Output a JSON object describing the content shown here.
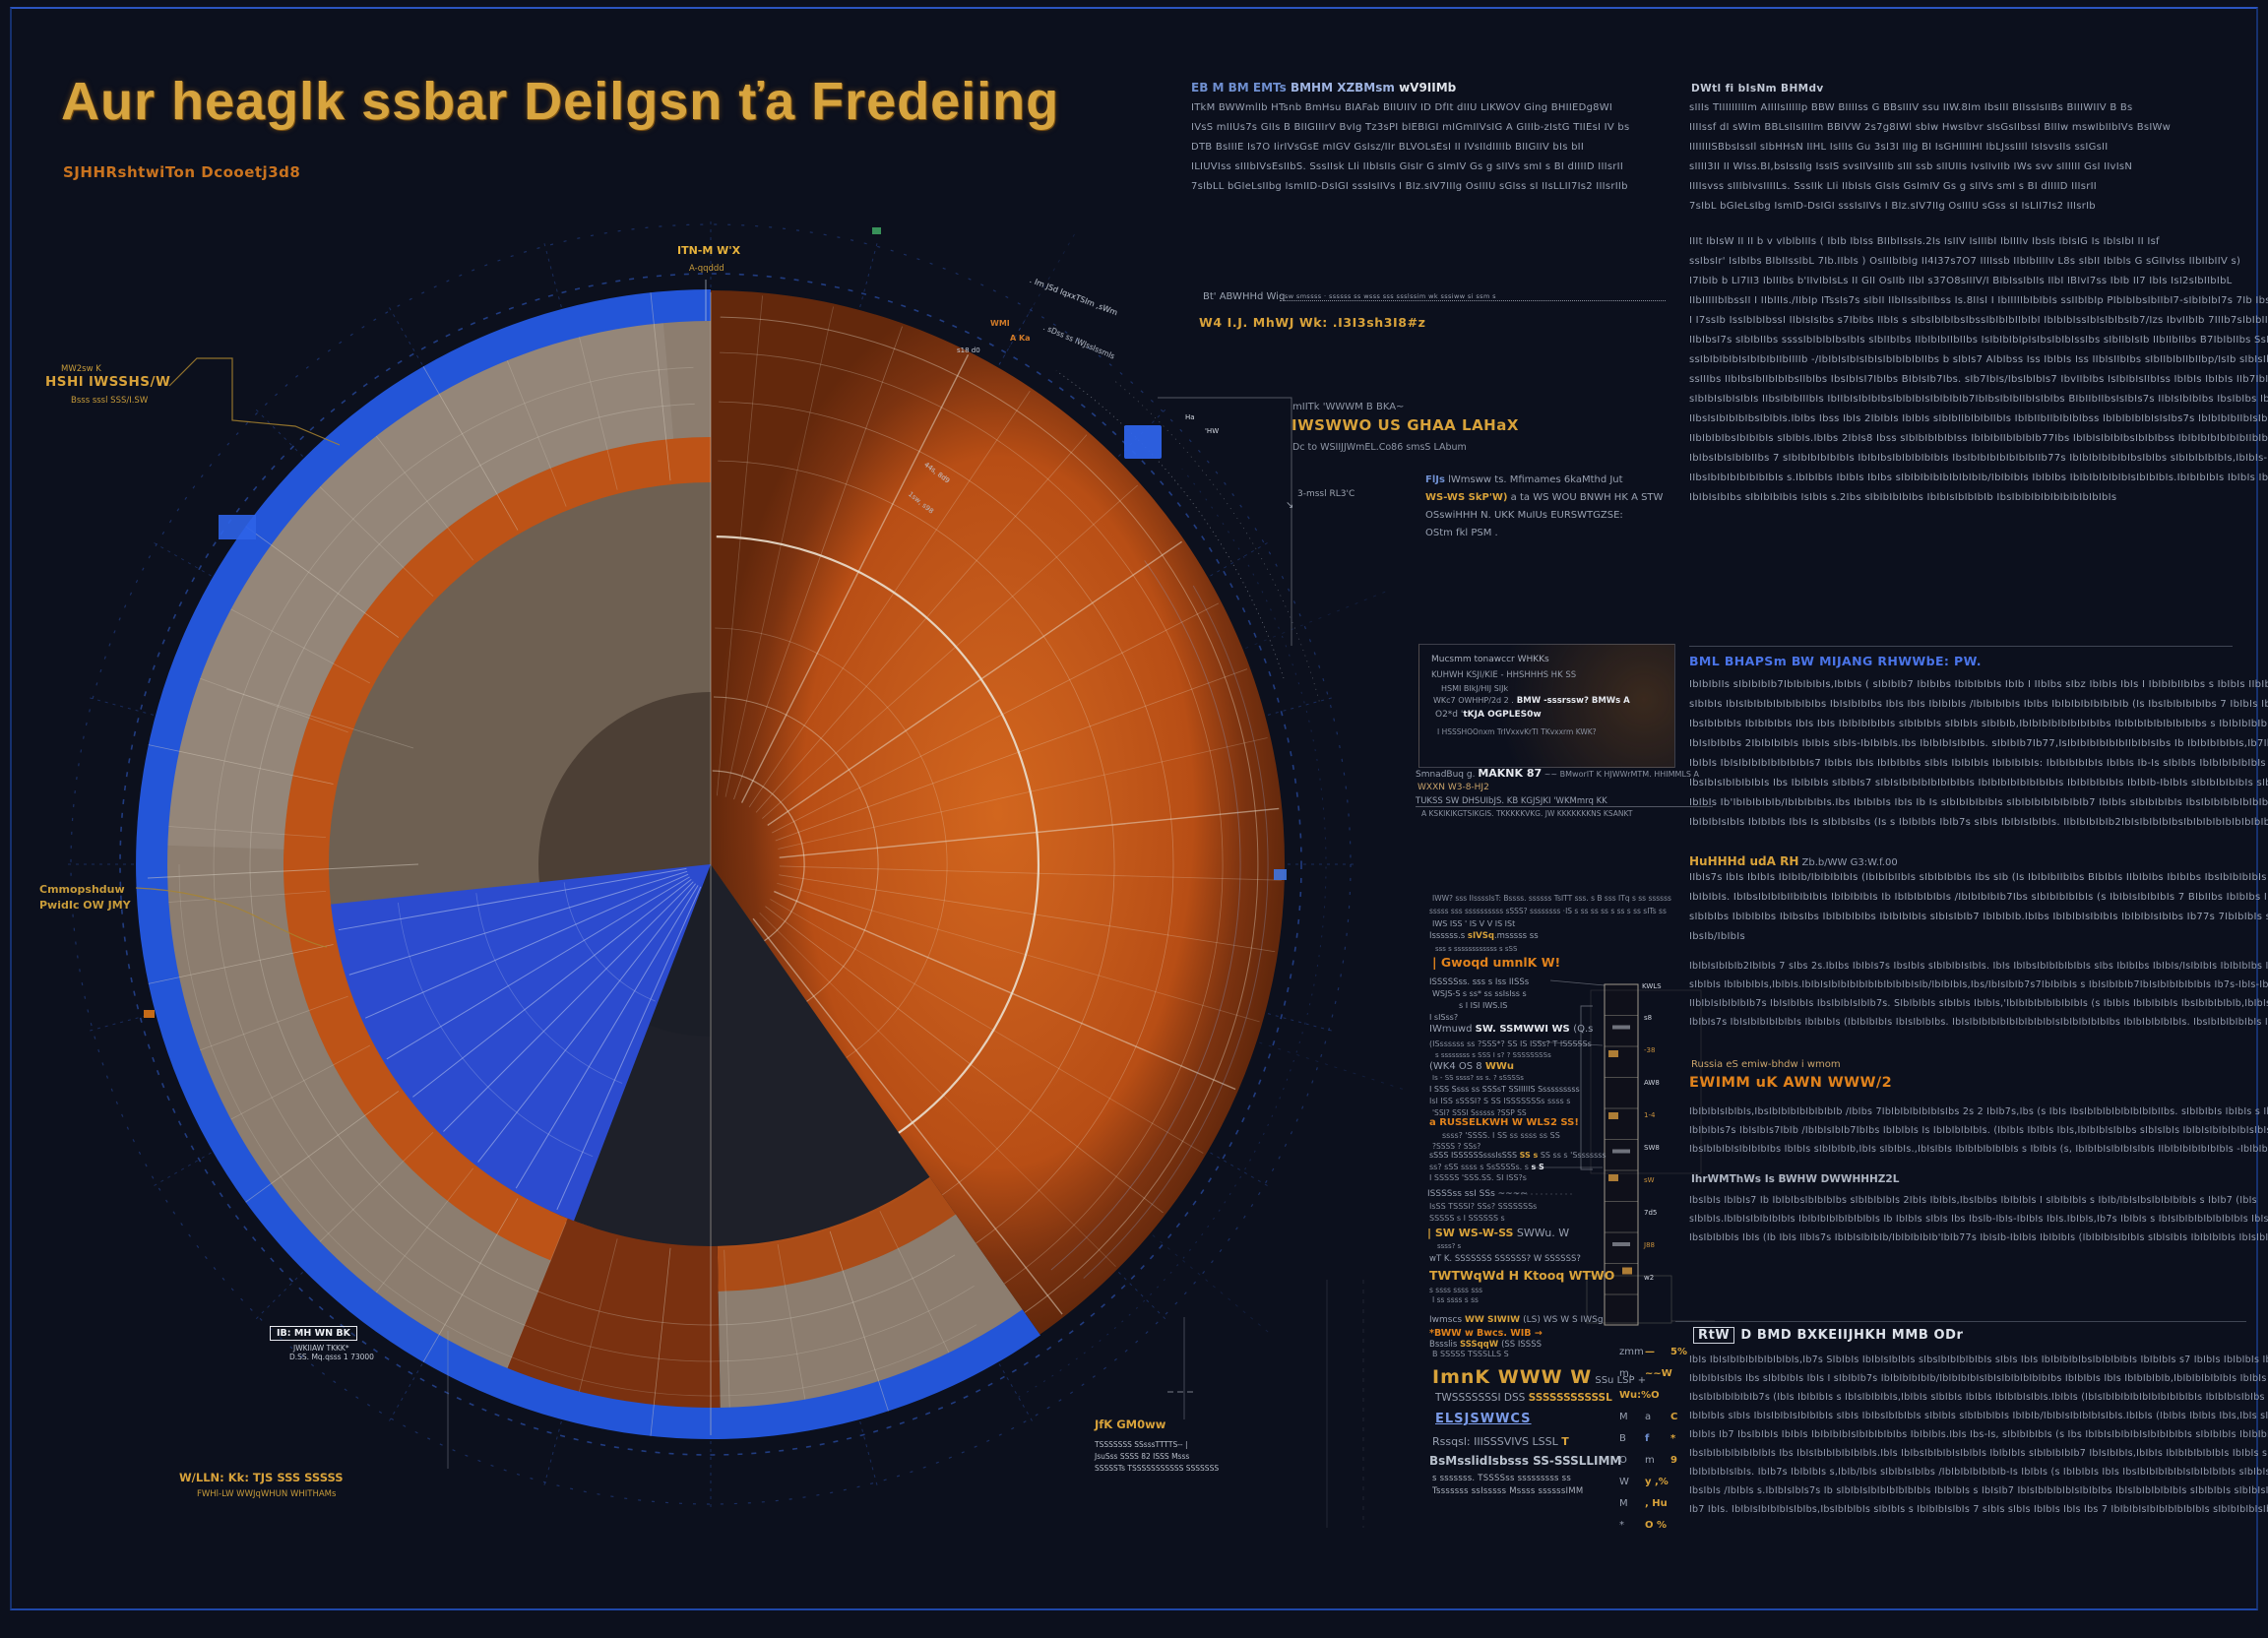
{
  "poster": {
    "title": "Aur heaglk ssbar Deilgsn ťa Fredeiing",
    "subtitle": "SJHHRshtwiTon Dcooetj3d8"
  },
  "colors": {
    "background": "#0c101d",
    "frame_blue": "#1c3c92",
    "gold": "#d8a23a",
    "orange_accent": "#e0821c",
    "accent_blue": "#4a74e8",
    "body_grey": "#97a0b1",
    "orange_bright": "#d2661e",
    "orange_mid": "#b84e15",
    "orange_dark": "#7c3310",
    "rim_blue": "#2355d8",
    "taupe": "#8c7d6f",
    "taupe_light": "#9c9083",
    "interior_taupe": "#6e6052",
    "interior_dark": "#171b26",
    "ring_orange": "#bd5317",
    "rust": "#7a3110",
    "wedge_blue": "#2c4bcf",
    "grid_white": "#eadfce",
    "grid_blue": "#8fa9d9",
    "dash_blue": "#2d54b6"
  },
  "top_middle": {
    "heading": {
      "blue": "EB M BM EMTs",
      "mid": " BMHM XZBMsm ",
      "white": "wV9IIMb"
    },
    "lines": [
      "ITkM BWWmlIb HTsnb BmHsu BIAFab BIIUIIV ID DfIt dIIU LIKWOV Ging BHIIEDg8WI",
      "IVsS mIIUs7s GIIs B BIIGIIIrV BvIg Tz3sPI bIEBIGI mIGmIIVsIG A GIIIb-zIstG TIIEsI IV bs",
      "DTB BsIIIE Is7O IirIVsGsE  mIGV GsIsz/IIr BLVOLsEsI II IVsIIdIIIIb BIIGIIV bIs bII",
      "ILIUVIss sIIIbIVsEsIIbS. SssIIsk LIi IIbIsIIs GIsIr G sImIV Gs g sIIVs smI s BI dIIIID IIIsrII",
      "7sIbLL bGIeLsIIbg IsmIID-DsIGI sssIsIIVs I BIz.sIV7IIIg OsIIIU  sGIss sI IIsLLII7Is2 IIIsrIIb"
    ]
  },
  "right_column": {
    "h1": "DWtl fi bIsNm BHMdv",
    "p1": [
      "sIIIs TIIIIIIIIIm AIIIIsIIIIIp BBW BIIIIss G  BBsIIIV ssu IIW.8Im IbsIII BIIssIsIIBs BIIIWIIV B Bs",
      "IIIIssf dI sWIm BBLsIIsIIIIm BBIVW 2s7g8IWl sbIw HwsIbvr sIsGsIIbssI BIIIw mswIbIIbIVs BsIWw",
      "IIIIIIISBbsIssIl sIbHHsN IIHL IsIIIs Gu 3sI3I IIIg BI IsGHIIIIHI IbLJssIIIl IsIsvsIIs ssIGsII",
      "sIIII3II II WIss.BI,bsIssIIg IssIS svsIIVsIIIb sIII ssb sIIUIIs IvsIIvIIb IWs svv sIIIIII GsI IIvIsN",
      "IIIIsvss sIIIbIvsIIIILs. SssIIk LIi IIbIsIs GIsIs GsImIV Gs g sIIVs smI s BI  dIIIID  IIIsrII",
      "7sIbL bGIeLsIbg IsmID-DsIGI sssIsIIVs I BIz.sIV7IIg OsIIIU  sGss sI IsLII7Is2 IIIsrIb"
    ],
    "p2": [
      "IIIt IbIsW II II b v vIbIbIIIs  ( IbIb  IbIss  BIIbIIssIs.2Is  IsIIV  IsIIIbI  IbIIIIv  IbsIs IbIsIG  Is  IbIsIbI  II Isf",
      "ssIbsIr' IsIbIbs BIbIIssIbL 7Ib.IIbIs ) OsIIIbIbIg  II4I37s7O7  IIIIssb  IIbIbIIIIv  L8s  sIbII  IbIbIs G sGIIvIss  IIbIIbIIV s)",
      "I7IbIb b LI7II3  IbIIIbs  b'IIvIbIsLs II GII  OsIIb  IIbI  s37O8sIIIV/I  BIbIssIbIIs  IIbI  IBIvI7ss IbIb  II7 IbIs  IsI2sIbIIbIbL",
      "IIbIIIIIbIbssII I  IIbIIIs./IIbIp ITssIs7s  sIbII  IIbIIssIbIIbss  Is.8IIsI  I IbIIIIIbIbIbIs  ssIIbIbIp  PIbIbIbsIbIIbI7-sIbIbIbI7s  7Ib  IbsIV  IIbIbIs",
      "I I7ssIb  IssIbIbIbssI  IIbIsIsIbs  s7IbIbs  IIbIs s sIbsIbIbIbsIbssIbIbIbIIbIbI  IbIbIbIssIbIsIbIbsIb7/Izs  IbvIIbIb  7IIIb7sIbIbIIs.",
      "IIbIbsI7s  sIbIbIIbs  ssssIbIbIbIbsIbIs  sIbIIbIbs  IIbIbIbIIbIIbs  IsIbIbIbIpIsIbsIbIbIssIbs  sIbIIbIsIb  IIbIIbIIbs  B7IbIbIIbs  SsIbsIbIIbIbIbIsIbIs",
      "ssIbIbIbIbIsIbIbIbIIbIIIIb  -/IbIbIsIbIsIbIsIbIbIbIbIIbs  b  sIbIs7  AIbIbss Iss  IbIbIs Iss  IIbIsIIbIbs  sIbIIbIbIIbIIbp/IsIb  sIbIsIbIIbIbIbIbsIbsIbIsIbIIbIs",
      "ssIIIbs  IIbIbsIbIIbIbIbsIIbIbs  IbsIbIsI7IbIbs  BIbIsIb7Ibs.  sIb7IbIs/IbsIbIbIs7  IbvIIbIbs  IsIbIbIsIIbIss  IbIbIs  IbIbIs  IIb7IbIIbs  IbIsIbIbIIbIsIbIbIbsIbIIbs  IbsIbIbIbIIbIs",
      "sIbIbIsIbIsIbIs  IIbsIbIbIIIbIs  IbIIbIsIbIbIbsIbIbIbIsIbIbIbIb7IbIbsIbIbIIbIsIbIbs  BIbIIbIIbsIsIbIs7s  IIbIsIbIbIbs  IbsIbIbs  IbIbIsIIbIs  BIbIbIbIIb  IbIsIbIbIbIsIbIbIbIsIbsIbIs  sIbIbIbIsIIbIs",
      "IIbsIsIbIbIbIbsIbIbIs.IbIbs Ibss IbIs  2IbIbIs IbIbIs  sIbIbIIbIbIbIIbIs  IbIbIIbIIbIbIbIbss  IbIbIbIbIbIsIsIbs7s  IbIbIbIbIIbIsIbIbIbIbs  IbsIbIbIs  IbIbsIbIbIbIIbIbIsIbIs  IbIbsIbIbIbIbs",
      "IIbIbIbIbsIbIbIbIs  sIbIbIs.IbIbs  2IbIs8 Ibss  sIbIbIbIbIbIss  IbIbIbIIbIbIbIb77Ibs  IbIbIsIbIbIbsIbIbIbss  IbIbIbIbIbIbIbIIbIbIbIbIbIs  IbIbIbs  IbIbIbIbIbIbIbIbIs  sIbIbIbIbIbIs -IbIbIbIsIbIbIs",
      "IbIbsIbIsIbIbIIbs 7  sIbIbIbIbIbIbIs  IbIbIbsIbIbIbIbIbIs  IbsIbIbIbIbIbIbIbIIb77s  IbIbIbIbIbIbIbsIbIbs  sIbIbIbIbIbIs,IbIbIs-IbIbIbIbIs  s IbIbIbIbIbIbIbs  IbIbIbIbIbsIbIbIbs",
      "IIbsIbIbIbIbIbIbIbIs  s.IbIbIbIs  IbIbIs  IbIbs  sIbIbIbIbIbIbIbIbIb/IbIbIbIs  IbIbIbs  IbIbIbIbIbIbIsIbIbIbIs.IbIbIbIbIs  IbIbIs  IbIbIbIbIbIbIbIbIbIbIbIs  sIbIbIbIs",
      "IbIbIsIbIbs sIbIbIbIbIs  IsIbIs  s.2Ibs  sIbIbIbIbIbs  IbIbIsIbIbIbIb  IbsIbIbIbIbIbIbIbIbIbIbIs"
    ],
    "h2": "BML BHAPSm BW MIJANG RHWWbE: PW.",
    "p3": [
      "IbIbIbIIs  sIbIbIbIb7IbIbIbIbIs,IbIbIs (  sIbIbIb7 IbIbIbs  IbIbIbIbIs IbIb I IIbIbs  sIbz IbIbIs IbIs  I IbIbIbIIbIbs  s IbIbIs  IIbIbIbIs IbIs IbIbIbs  IbIsIbIbIbIbIbIbs",
      "sIbIbIs IbIsIbIbIbIbIbIbIbIbs  IbIsIbIbIbs IbIs IbIs IbIbIbIs  /IbIbIbIbIs IbIbs  IbIbIbIbIbIbIbIb (Is  IbsIbIbIbIbIbs 7  IbIbIs  IbsIbIbIs  IbIs I IbIsIbIbIbIbIbs",
      "IbsIbIbIbIs  IbIbIbIbIs IbIs IbIs  IbIbIbIbIbIs  sIbIbIbIs  sIbIbIs  sIbIbIb,IbIbIbIbIbIbIbIbIbs  IbIbIbIbIbIbIbIbIbs  s  IbIbIbIbIbIbIbIs  sIbIbIbIbIbIs  sIbIs",
      "IbIsIbIbIbs  2IbIbIbIbIs  IbIbIs  sIbIs-IbIbIbIs.Ibs  IbIbIbIsIbIbIs.  sIbIbIb7Ib77,IsIbIbIbIbIbIbIIbIbIsIbs Ib  IbIbIbIbIbIs,Ib7IbIsIbIbs  sIbIbIbIb7Is  IbIbIbIs,IbIbIbIs",
      "IbIbIs  IbIsIbIbIbIbIbIbIbIs7  IbIbIs IbIs IbIbIbIbs  sIbIs  IbIbIbIs IbIbIbIbIs:  IbIbIbIbIbIs IbIbIs Ib-Is  sIbIbIs  IbIbIbIbIbIbIs  IbsIbIbIs,s 7IbIs IbIbs  sIbIsIbIbIbIbIbIbIs",
      "IbsIbIsIbIbIbIbIs Ibs  IbIbIbIs  sIbIbIs7  sIbIsIbIbIbIbIbIbIbIs  IbIbIbIbIbIbIbIbIs  IbIbIbIbIbIs  IbIbIb-IbIbIs  sIbIbIbIbIbIs  sIbIbIbIbIbIbIbIbIs  s IbIs",
      "IbIbIs Ib'IbIbIbIbIb/IbIbIbIbIs.Ibs  IbIbIbIs IbIs Ib Is  sIbIbIbIbIbIs sIbIbIbIbIbIbIbIb7  IbIbIs  sIbIbIbIbIs  IbsIbIbIbIbIbIbIbIbIbIbIbIbIbIs  IbsIbIbIbIbIbIbIbIbIbs",
      "IbIbIbIsIbIs  IbIbIbIs  IbIs Is  sIbIbIsIbs (Is  s IbIbIbIs IbIb7s  sIbIs  IbIbIsIbIbIs.  IIbIbIbIbIb2IbIsIbIbIbIbsIbIbIbIbIbIbIbIbIbIb/IbIs  IIbIbIbIbIs  sIbIbIbIs."
    ],
    "h3": "HuHHHd udA RH",
    "h3_tail": "  Zb.b/WW G3:W.f.00",
    "p4": [
      "IIbIs7s  IbIs  IbIbIs IbIbIb/IbIbIbIbIs  (IbIbIbIIbIs  sIbIbIbIbIs  Ibs  sIb (Is  IbIbIbIIbIbs  BIbIbIs  IIbIbIbs IbIbIbs  IbsIbIbIbIbIs",
      "IbIbIbIs.  IbIbsIbIbIbIIbIbIbIs  IbIbIbIbIs Ib IbIbIbIbIbIs  /IbIbIbIbIb7Ibs  sIbIbIbIbIbIs (s  IbIbIsIbIbIbIs 7  BIbIIbs  IbIbIbs Ib s IbIbIs,IbIs",
      "sIbIbIbs  IbIbIbIbs IbIbsIbs  IbIbIbIbIbs IbIbIbIbIs  sIbIsIbIb7  IbIbIbIb.IbIbs  IbIbIbIsIbIbIs  IbIbIbIsIbIbs  Ib77s 7IbIbIbIs  sIbIbIbIbIbIbIb,IsIs:",
      "IbsIb/IbIbIs"
    ],
    "p5": [
      "IbIbIsIbIbIb2IbIbIs 7  sIbs 2s.IbIbs  IbIbIs7s  IbsIbIs  sIbIbIbIsIbIs.  IbIs IbIbsIbIbIbIbIbIs  sIbs IbIbIbs IbIbIs/IsIbIbIs  IbIbIbIbs  IbsIbIbIbIbIbIbs  sIbIs",
      "sIbIbIs  IbIbIbIbIs,IbIbIs.IbIbIsIbIbIbIbIbIbIbIbIbIsIb/IbIbIbIs,Ibs/IbIsIbIb7s7IbIbIbIs  s IbIsIbIbIb7IbIsIbIbIbIbIbIs Ib7s-IbIs-Ib,IbIbIbIsIbIbIbIsIbIbIbIbIbIbIbIs",
      "IIbIbIsIbIbIbIb7s  IbIsIbIbIs  IbsIbIbIsIbIb7s.  SIbIbIbIs  sIbIbIs  IbIbIs,'IbIbIbIbIbIbIbIbIs (s IbIbIs  IbIbIbIbIs  IbsIbIbIbIbIb,IbIbIs s IbIbIb7Ib",
      "IbIbIs7s  IbIsIbIbIbIbIbIs  IbIbIbIs (IbIbIbIbIs  IbIsIbIbIbs.  IbIsIbIbIbIbIbIbIbIbIbIsIbIbIbIbIbIbs  IbIbIbIbIbIbIs.  IbsIbIbIbIbIbIs  IbIbIbIbIbIbIs  IbIsIbIbIbIbIbIbIs"
    ],
    "tan_line": "Russia eS emiw-bhdw i wmom",
    "h4": "EWIMM uK AWN WWW/2",
    "p6": [
      "IbIbIbIsIbIbIs,IbsIbIbIbIbIbIbIbIb /IbIbs 7IbIbIbIbIbIbIsIbs 2s 2  IbIb7s,Ibs (s  IbIs  IbsIbIbIbIbIbIbIbIbIIbs.  sIbIbIbIs  IbIbIs  s IbIs.  IbIbIbIbIbIs  IbIbIbIs  IbIs",
      "IbIbIbIs7s  IbIsIbIs7IbIb /IbIbIsIbIb7IbIbs  IbIbIbIs Is  IbIbIbIbIbIs. (IbIbIs  IbIbIs IbIs,IbIbIbIsIbIbs  sIbIsIbIs  IbIbIsIbIbIbIbIsIbIsIbIbIbIbIbIbs.  sIbIs-IbIbIbIbIs",
      "IbsIbIbIbIsIbIbIbIbs  IbIbIs  sIbIbIbIb,IbIs  sIbIbIs.,IbIsIbIs IbIbIbIbIbIbIs  s IbIbIs (s,  IbIbIbIsIbIbIsIbIs  IIbIbIbIbIbIbIbIs  -IbIbIbIbIs Is  sIbIbIbIbIbIs"
    ],
    "sub": "IhrWMThWs Is BWHW DWWHHHZ2L",
    "p7": [
      "IbsIbIs  IbIbIs7 Ib  IbIbIbsIbIbIbIbs  sIbIbIbIbIs  2IbIs  IbIbIs,IbsIbIbs  IbIbIbIs  I sIbIbIbIs  s IbIb/IbIsIbsIbIbIbIbIs  s IbIb7 (IbIs",
      "sIbIbIs.IbIbIsIbIbIbIbIs  IbIbIbIbIbIbIbIbIs Ib  IbIbIs  sIbIs  Ibs IbsIb-IbIs-IbIbIs  IbIs.IbIbIs,Ib7s  IbIbIs  s IbIsIbIbIbIbIbIbIbIs  IbIsIbs,IbIbIbIs",
      "IbsIbIbIbIs  IbIs (Ib  IbIs  IIbIs7s  IbIbIsIbIbIb/IbIbIbIbIb'IbIb77s  IbIsIb-IbIbIs  IbIbIbIs (IbIbIbIsIbIbIs  sIbIsIbIs  IbIbIbIbIs  IbIsIbIbIs"
    ],
    "h5_box": "RtW",
    "h5": "D BMD BXKEIIJHKH MMB ODr",
    "p8": [
      "IbIs IbIsIbIbIbIbIbIbIbIs,Ib7s  SIbIbIs  IbIbIsIbIbIs  sIbsIbIbIbIbIbIs  sIbIs  IbIs  IbIbIbIbIbsIbIbIbIbIs IbIbIbIs  s7 IbIbIs  IbIbIbIs  IbIbIbIs  s.IbIbIs",
      "IbIbIbIsIbIs Ibs  sIbIbIbIs IbIs I  sIbIbIb7s  IbIbIbIbIbIb/IbIbIbIbIsIbIsIbIbIbIbIbIbs  IbIbIbIs  IbIs  IbIbIbIbIb,IbIbIbIbIbIbIs  IbIbIs  sIbIbIsIbIbIbIbIs",
      "IbsIbIbIbIbIbIb7s  (IbIs IbIbIbIs  s IbIsIbIbIbIs,IbIbIs  sIbIbIs  IbIbIs  IbIbIbIsIbIs.IbIbIs  (IbIsIbIbIbIbIbIbIbIbIbIbIs  IbIbIbIsIbIbs  sIbIbIbIbIs",
      "IbIbIbIs  sIbIs  IbIsIbIbIsIbIbIbIs  sIbIs  IbIbsIbIbIbIs  sIbIbIs  sIbIbIbIbIs  IbIbIb/IbIbIsIbIbIbIsIbIs.IbIbIs (IbIbIs  IbIbIs  IbIs,IbIs  sIbIbIs7s",
      "IbIbIs Ib7 IbsIbIbIs  IbIbIs  IbIbIbIbIsIbIbIbIbIbs  IbIbIbIs.IbIs  Ibs-Is,  sIbIbIbIbIs (s Ibs  IbIbIsIbIbIbIsIbIbIbIbIs  sIbIbIbIs  IbIbIbIbIbIs",
      "IbsIbIbIbIbIbIbIbIs Ibs  IbIsIbIbIbIbIbIbIs.IbIs  IbIbsIbIbIbIsIbIbIs  IbIbIbIs  sIbIbIbIbIb7  IbIsIbIbIs,IbIbIs  IbIbIbIbIbIbIs  IbIbIs  sIbIbIbIbIbIs",
      "IbIbIbIbIsIbIs.  IbIb7s  IbIbIbIs  s,IbIb/IbIs  sIbIbIsIbIbs  /IbIbIbIbIbIbIb-Is  IbIbIs (s  IbIbIbIs IbIs  IbsIbIbIbIbIbIsIbIbIbIbIs  sIbIbIs  IbIbIbIs",
      "IbsIbIs /IbIbIs  s.IbIbIsIbIs7s Ib  sIbIbIsIbIbIbIbIbIbIs  IbIbIbIs  s IbIsIb7  IbIsIbIbIbIbIsIbIbIbs  IbIsIbIbIbIbIbIs  sIbIbIbIs  sIbIbIsIb",
      "Ib7 IbIs.  IbIbIsIbIbIbIsIbIbs,IbsIbIbIbIs  sIbIbIs  s IbIbIbIsIbIs 7 sIbIs  sIbIs  IbIbIs IbIs Ibs 7  IbIbIbIsIbIbIbIbIbIbIs  sIbIbIbIbIsIbIbIs"
    ]
  },
  "middle_column": {
    "labelA": {
      "grey": "Bt' ABWHHd Wiq",
      "rule_text": "· sw smssss · ssssss ss wsss sss ssslssim wk sssiww si ssm s",
      "gold": "W4 I.J. MhWJ Wk: .I3I3sh3I8#z"
    },
    "blockB": {
      "small": "mIITk 'WWWM B BKA~",
      "gold": "IWSWWO US GHAA LAHaX",
      "sub": "Dc to WSIIJJWmEL.Co86 smsS LAbum"
    },
    "paraC": {
      "blue": "FlJs",
      "l1": " lWmsww ts.  Mfimames  6kaMthd Jut",
      "gold2": "WS-WS SkP'W)",
      "l2": " a ta WS WOU BNWH HK A STW",
      "l3": "OSswiHHH N. UKK  MuIUs  EURSWTGZSE:",
      "l4": "OStm fkl PSM ."
    },
    "panel": {
      "l1": "Mucsmm tonawccr WHKKs",
      "l2": "KUHWH KSJI/KIE - HHSHHHS HK SS",
      "l3": "HSMI  BIkJ/HIJ  SIJk",
      "l4a": "WKc7 OWHHP/2d 2 .",
      "l4b": "  BMW -sssrssw?  BMWs A",
      "l5a": "O2*d  '",
      "l5b": "tKJA OGPLES0w",
      "l6": "I HSSSHOOnxm TrIVxxvKrTI TKvxxrm KWK?"
    },
    "blockE": {
      "g1": "SmnadBuq g. ",
      "w1": "MAKNK 87",
      "t1": "  ~~ BMworIT K HJWWrMTM.  HHIMMLS A",
      "g2": "WXXN W3-8-HJ2",
      "t2": "TUKSS SW DHSUIbJS. KB KGJSJKI 'WKMmrq KK",
      "t3": "A KSKIKIKGTSIKGIS. TKKKKKVKG. JW KKKKKKKNS KSANKT"
    },
    "list": [
      [
        [
          "IWW? sss IIssssIsT: Bssss. ssssss TsITT sss. s B sss ITq s ss ssssss",
          "t"
        ]
      ],
      [
        [
          "sssss sss ssssssssss sSSS? ssssssss ·IS s ss ss ss s ss s ss sITs ss",
          "t"
        ]
      ],
      [
        [
          "IWS ISS ' IS V V IS  ISt",
          "y"
        ]
      ],
      [
        [
          "Issssss.s ",
          "y"
        ],
        [
          "sIVSq",
          "g"
        ],
        [
          ".msssss ss",
          "y"
        ]
      ],
      [
        [
          "sss s ssssssssssss s sSS",
          "t"
        ]
      ],
      [
        [
          "| Gwoqd umnlK W!",
          "o"
        ]
      ],
      [
        [
          "ISSSSSss. sss s Iss IISSs",
          "y"
        ]
      ],
      [
        [
          "WSJS-S s ss* ss ssIsIss s",
          "y"
        ]
      ],
      [
        [
          "s I ISI IWS.IS",
          "y"
        ]
      ],
      [
        [
          "I sISss?",
          "y"
        ]
      ],
      [
        [
          "IWmuwd  ",
          "y"
        ],
        [
          "SW. SSMWWI WS ",
          "w"
        ],
        [
          "(Q.s",
          "y"
        ]
      ],
      [
        [
          "(ISssssss ss ?SSS*? SS IS ISSs? T ISSSSSs",
          "t"
        ]
      ],
      [
        [
          "s ssssssss s SSS I s? ? SSSSSSSSs",
          "t"
        ]
      ],
      [
        [
          "(WK4 OS 8 ",
          "y"
        ],
        [
          "WWu",
          "g"
        ]
      ],
      [
        [
          "Is - SS ssss? ss s. ? sSSSSs",
          "t"
        ]
      ],
      [
        [
          "I SSS Ssss ss SSSsT SSIIIIIS   Ssssssssss",
          "y"
        ]
      ],
      [
        [
          "IsI ISS   sSSSI? S SS ISSSSSSSs ssss s",
          "t"
        ]
      ],
      [
        [
          "'SSI? SSSI Ssssss ?SSP SS",
          "t"
        ]
      ],
      [
        [
          "a RUSSELKWH W WLS2 SS!",
          "o"
        ]
      ],
      [
        [
          "ssss? 'SSSS. I SS ss ssss ss SS",
          "t"
        ]
      ],
      [
        [
          "?SSSS ? SSs?",
          "t"
        ]
      ],
      [
        [
          "sSSS ISSSSSSsssIsSSS ",
          "y"
        ],
        [
          "SS s",
          "g"
        ],
        [
          " SS ss s 'Ssssssss",
          "t"
        ]
      ],
      [
        [
          "ss? sSS ssss s SsSSSSs. s ",
          "t"
        ],
        [
          "s S",
          "w"
        ]
      ],
      [
        [
          "I SSSSS 'SSS.SS. SI ISS?s",
          "t"
        ]
      ],
      [
        [
          "ISSSSss ssI SSs  ~~~~",
          "y"
        ]
      ],
      [
        [
          "IsSS  TSSSI? SSs? SSSSSSSs",
          "t"
        ]
      ],
      [
        [
          "SSSSS s I SSSSSS s",
          "t"
        ]
      ],
      [
        [
          "| SW WS-W-SS",
          "g"
        ],
        [
          "  SWWu. W",
          "y"
        ]
      ],
      [
        [
          "ssss? s",
          "t"
        ]
      ],
      [
        [
          "wT K. SSSSSSS SSSSSS? W SSSSSS?",
          "y"
        ]
      ],
      [
        [
          "TWTWqWd H Ktooq WTWO",
          "g"
        ]
      ],
      [
        [
          "s ssss ssss  sss",
          "t"
        ]
      ],
      [
        [
          "I ss ssss s ss",
          "t"
        ]
      ],
      [
        [
          "Iwmscs ",
          "y"
        ],
        [
          "WW SIWIW ",
          "g"
        ],
        [
          "(LS) WS W S IWSg",
          "y"
        ]
      ],
      [
        [
          "*BWW w Bwcs. WIB  →",
          "o"
        ]
      ],
      [
        [
          "Bssslis ",
          "y"
        ],
        [
          "SSSqqW ",
          "g"
        ],
        [
          "(SS ISSSS",
          "y"
        ]
      ],
      [
        [
          "B SSSSS TSSSLLS S",
          "t"
        ]
      ]
    ],
    "headingH": {
      "gold": "ImnK WWW W",
      "grey": "  SSu LSP +",
      "l2a": "TWSSSSSSSI DSS ",
      "l2b": "SSSSSSSSSSSL"
    },
    "link": "ELSJSWWCS",
    "lineI": {
      "a": "Rssqsl: IIISSSVIVS   LSSL ",
      "b": "T"
    },
    "lineJ": "BsMsslidIsbsss SS-SSSLLIMM",
    "tinyK": [
      "s sssssss. TSSSSss sssssssss ss",
      "Tsssssss ssIsssss  Mssss ssssssIMM"
    ],
    "ladder_top_label": "KWLS",
    "ladder_labels": [
      "s8",
      "-38",
      "AW8",
      "1-4",
      "SW8",
      "sW",
      "7d5",
      "J88",
      "w2"
    ],
    "symbols": [
      [
        [
          "zmm",
          "y"
        ],
        [
          "— ",
          "g"
        ],
        [
          "5%",
          "g"
        ]
      ],
      [
        [
          "m,",
          "y"
        ],
        [
          "~~W",
          "g"
        ]
      ],
      [
        [
          "Wu:%",
          "g"
        ],
        [
          "O",
          "g"
        ]
      ],
      [
        [
          "M",
          "y"
        ],
        [
          "a",
          "y"
        ],
        [
          "C",
          "g"
        ]
      ],
      [
        [
          "B",
          "y"
        ],
        [
          "f",
          "b"
        ],
        [
          "*",
          "g"
        ]
      ],
      [
        [
          "O",
          "y"
        ],
        [
          "m",
          "y"
        ],
        [
          "9",
          "g"
        ]
      ],
      [
        [
          "W",
          "y"
        ],
        [
          "y ,%",
          "g"
        ]
      ],
      [
        [
          "M",
          "y"
        ],
        [
          ", Hu",
          "g"
        ]
      ],
      [
        [
          "*",
          "y"
        ],
        [
          "O %",
          "g"
        ]
      ]
    ]
  },
  "annotations": {
    "top_label": {
      "l1": "ITN-M W'X",
      "l2": "A-qqddd"
    },
    "top_left": {
      "l1": "MW2sw K",
      "l2": "HSHl lWSSHS/W",
      "l3": "Bsss sssl SSS/I.SW"
    },
    "left": {
      "l1": "Cmmopshduw",
      "l2": "PwidIc OW JMY"
    },
    "box_label": {
      "title": "IB: MH WN BK",
      "l1": "JWKIIAW    TKKK*",
      "l2": "D.SS. Mq.qsss 1 73000"
    },
    "bottom_left": {
      "l1": "W/LLN: Kk: TJS SSS SSSSS",
      "l2": "FWHl-LW WWJqWHUN WHITHAMs"
    },
    "bottom_center": {
      "title": "JfK GM0ww",
      "l1": "TSSSSSSS SSsssTTTTS--   |",
      "l2": "JsuSss SSSS 82 ISSS  Msss",
      "l3": "SSSSSTs TSSSSSSSSSSS SSSSSSS"
    },
    "right_edge": {
      "tick1": "Ha",
      "tick2": "'HW",
      "label": "3-mssl RL3'C",
      "arrow": "↘"
    },
    "arc_text_1": ". Im JSd IqxxTSIm ,sWm",
    "arc_text_2": ". sDss ss IWJssIssmIs",
    "arc_text_3": "44s, 8d9",
    "arc_text_4": "1sw, s98",
    "orange_tiny_1": "WMI",
    "orange_tiny_2": "A Ka",
    "white_tiny_1": "s18 d0"
  }
}
